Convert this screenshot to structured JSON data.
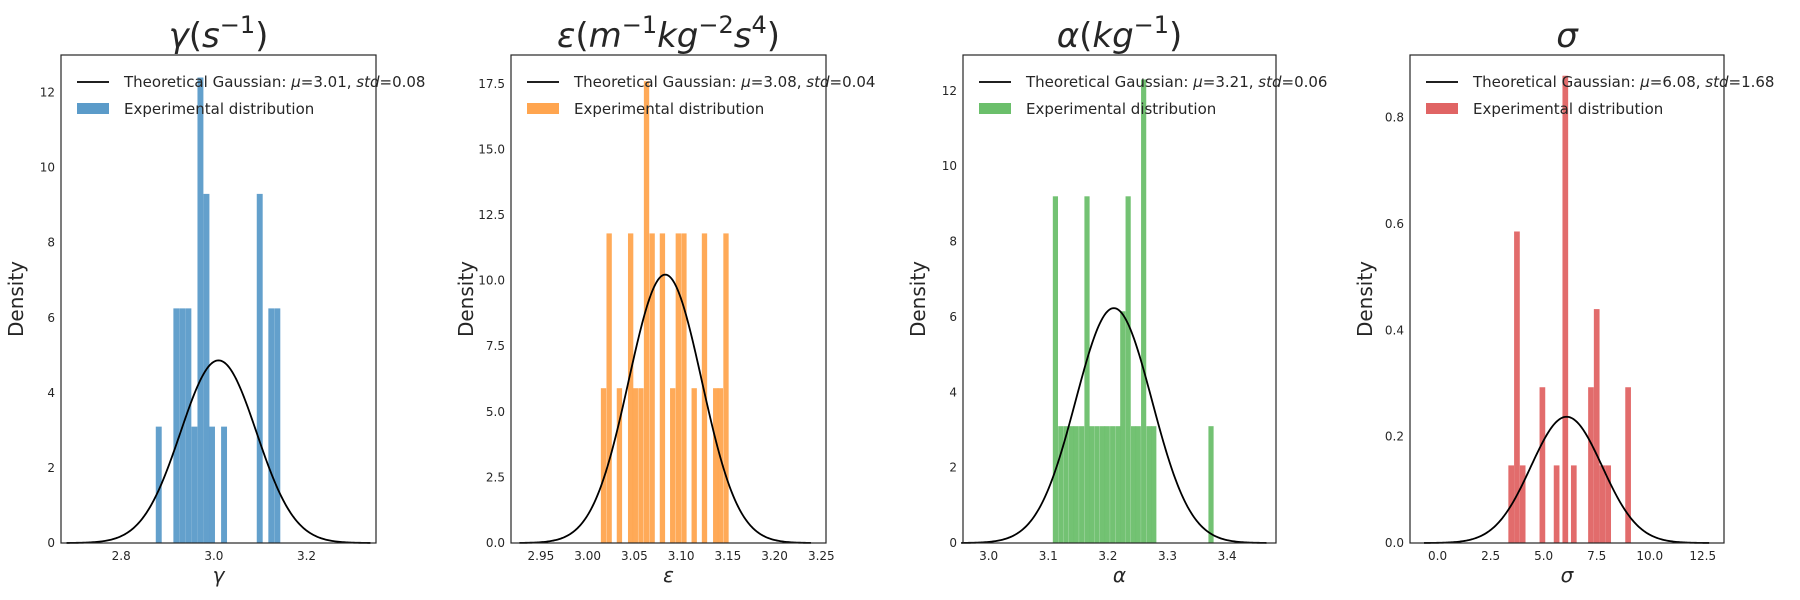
{
  "figure": {
    "density_label": "Density",
    "legend_theory_prefix": "Theoretical Gaussian: ",
    "legend_experimental": "Experimental distribution"
  },
  "chart_data": [
    {
      "type": "bar",
      "title_parts": [
        {
          "t": "γ",
          "it": true
        },
        {
          "t": "(",
          "it": false
        },
        {
          "t": "s",
          "it": true
        },
        {
          "t": "−1",
          "it": false,
          "sup": true
        },
        {
          "t": ")",
          "it": false
        }
      ],
      "title": "γ(s^−1)",
      "xlabel": "γ",
      "ylabel": "Density",
      "color": "#5b9bc9",
      "xlim": [
        2.67,
        3.35
      ],
      "ylim": [
        0,
        13.0
      ],
      "xticks": [
        2.8,
        3.0,
        3.2
      ],
      "xtick_labels": [
        "2.8",
        "3.0",
        "3.2"
      ],
      "yticks": [
        0,
        2,
        4,
        6,
        8,
        10,
        12
      ],
      "ytick_labels": [
        "0",
        "2",
        "4",
        "6",
        "8",
        "10",
        "12"
      ],
      "legend": {
        "mu": "3.01",
        "std": "0.08",
        "theory_label": "Theoretical Gaussian: μ=3.01, std=0.08",
        "hist_label": "Experimental distribution"
      },
      "bin_width": 0.0128,
      "bins": [
        {
          "x": 2.881,
          "h": 3.1
        },
        {
          "x": 2.919,
          "h": 6.25
        },
        {
          "x": 2.932,
          "h": 6.25
        },
        {
          "x": 2.945,
          "h": 6.25
        },
        {
          "x": 2.958,
          "h": 3.1
        },
        {
          "x": 2.971,
          "h": 12.4
        },
        {
          "x": 2.984,
          "h": 9.3
        },
        {
          "x": 2.996,
          "h": 3.1
        },
        {
          "x": 3.022,
          "h": 3.1
        },
        {
          "x": 3.099,
          "h": 9.3
        },
        {
          "x": 3.124,
          "h": 6.25
        },
        {
          "x": 3.137,
          "h": 6.25
        }
      ],
      "gaussian": {
        "mu": 3.01,
        "sigma": 0.082
      }
    },
    {
      "type": "bar",
      "title_parts": [
        {
          "t": "ε",
          "it": true
        },
        {
          "t": "(",
          "it": false
        },
        {
          "t": "m",
          "it": true
        },
        {
          "t": "−1",
          "it": false,
          "sup": true
        },
        {
          "t": "kg",
          "it": true
        },
        {
          "t": "−2",
          "it": false,
          "sup": true
        },
        {
          "t": "s",
          "it": true
        },
        {
          "t": "4",
          "it": false,
          "sup": true
        },
        {
          "t": ")",
          "it": false
        }
      ],
      "title": "ε(m^−1kg^−2s^4)",
      "xlabel": "ε",
      "ylabel": "Density",
      "color": "#ffa54f",
      "xlim": [
        2.918,
        3.255
      ],
      "ylim": [
        0,
        18.6
      ],
      "xticks": [
        2.95,
        3.0,
        3.05,
        3.1,
        3.15,
        3.2,
        3.25
      ],
      "xtick_labels": [
        "2.95",
        "3.00",
        "3.05",
        "3.10",
        "3.15",
        "3.20",
        "3.25"
      ],
      "yticks": [
        0,
        2.5,
        5,
        7.5,
        10,
        12.5,
        15,
        17.5
      ],
      "ytick_labels": [
        "0.0",
        "2.5",
        "5.0",
        "7.5",
        "10.0",
        "12.5",
        "15.0",
        "17.5"
      ],
      "legend": {
        "mu": "3.08",
        "std": "0.04",
        "theory_label": "Theoretical Gaussian: μ=3.08, std=0.04",
        "hist_label": "Experimental distribution"
      },
      "bin_width": 0.0057,
      "bins": [
        {
          "x": 3.017,
          "h": 5.9
        },
        {
          "x": 3.023,
          "h": 11.8
        },
        {
          "x": 3.034,
          "h": 5.9
        },
        {
          "x": 3.046,
          "h": 11.8
        },
        {
          "x": 3.051,
          "h": 5.9
        },
        {
          "x": 3.057,
          "h": 5.9
        },
        {
          "x": 3.063,
          "h": 17.6
        },
        {
          "x": 3.069,
          "h": 11.8
        },
        {
          "x": 3.08,
          "h": 11.8
        },
        {
          "x": 3.091,
          "h": 5.9
        },
        {
          "x": 3.097,
          "h": 11.8
        },
        {
          "x": 3.103,
          "h": 11.8
        },
        {
          "x": 3.114,
          "h": 5.9
        },
        {
          "x": 3.125,
          "h": 11.8
        },
        {
          "x": 3.137,
          "h": 5.9
        },
        {
          "x": 3.142,
          "h": 5.9
        },
        {
          "x": 3.148,
          "h": 11.8
        }
      ],
      "gaussian": {
        "mu": 3.083,
        "sigma": 0.039
      }
    },
    {
      "type": "bar",
      "title_parts": [
        {
          "t": "α",
          "it": true
        },
        {
          "t": "(",
          "it": false
        },
        {
          "t": "kg",
          "it": true
        },
        {
          "t": "−1",
          "it": false,
          "sup": true
        },
        {
          "t": ")",
          "it": false
        }
      ],
      "title": "α(kg^−1)",
      "xlabel": "α",
      "ylabel": "Density",
      "color": "#6bbf6b",
      "xlim": [
        2.957,
        3.482
      ],
      "ylim": [
        0,
        12.95
      ],
      "xticks": [
        3.0,
        3.1,
        3.2,
        3.3,
        3.4
      ],
      "xtick_labels": [
        "3.0",
        "3.1",
        "3.2",
        "3.3",
        "3.4"
      ],
      "yticks": [
        0,
        2,
        4,
        6,
        8,
        10,
        12
      ],
      "ytick_labels": [
        "0",
        "2",
        "4",
        "6",
        "8",
        "10",
        "12"
      ],
      "legend": {
        "mu": "3.21",
        "std": "0.06",
        "theory_label": "Theoretical Gaussian: μ=3.21, std=0.06",
        "hist_label": "Experimental distribution"
      },
      "bin_width": 0.0087,
      "bins": [
        {
          "x": 3.112,
          "h": 9.2
        },
        {
          "x": 3.121,
          "h": 3.1
        },
        {
          "x": 3.13,
          "h": 3.1
        },
        {
          "x": 3.139,
          "h": 3.1
        },
        {
          "x": 3.147,
          "h": 3.1
        },
        {
          "x": 3.156,
          "h": 3.1
        },
        {
          "x": 3.165,
          "h": 9.2
        },
        {
          "x": 3.173,
          "h": 3.1
        },
        {
          "x": 3.182,
          "h": 3.1
        },
        {
          "x": 3.191,
          "h": 3.1
        },
        {
          "x": 3.199,
          "h": 3.1
        },
        {
          "x": 3.208,
          "h": 3.1
        },
        {
          "x": 3.217,
          "h": 3.1
        },
        {
          "x": 3.225,
          "h": 6.15
        },
        {
          "x": 3.234,
          "h": 9.2
        },
        {
          "x": 3.243,
          "h": 3.1
        },
        {
          "x": 3.251,
          "h": 3.1
        },
        {
          "x": 3.26,
          "h": 12.3
        },
        {
          "x": 3.269,
          "h": 3.1
        },
        {
          "x": 3.277,
          "h": 3.1
        },
        {
          "x": 3.373,
          "h": 3.1
        }
      ],
      "gaussian": {
        "mu": 3.21,
        "sigma": 0.064
      }
    },
    {
      "type": "bar",
      "title_parts": [
        {
          "t": "σ",
          "it": true
        }
      ],
      "title": "σ",
      "xlabel": "σ",
      "ylabel": "Density",
      "color": "#e06464",
      "xlim": [
        -1.3,
        13.5
      ],
      "ylim": [
        0,
        0.918
      ],
      "xticks": [
        0,
        2.5,
        5,
        7.5,
        10,
        12.5
      ],
      "xtick_labels": [
        "0.0",
        "2.5",
        "5.0",
        "7.5",
        "10.0",
        "12.5"
      ],
      "yticks": [
        0,
        0.2,
        0.4,
        0.6,
        0.8
      ],
      "ytick_labels": [
        "0.0",
        "0.2",
        "0.4",
        "0.6",
        "0.8"
      ],
      "legend": {
        "mu": "6.08",
        "std": "1.68",
        "theory_label": "Theoretical Gaussian: μ=6.08, std=1.68",
        "hist_label": "Experimental distribution"
      },
      "bin_width": 0.268,
      "bins": [
        {
          "x": 3.47,
          "h": 0.146
        },
        {
          "x": 3.74,
          "h": 0.586
        },
        {
          "x": 4.01,
          "h": 0.146
        },
        {
          "x": 4.94,
          "h": 0.293
        },
        {
          "x": 5.61,
          "h": 0.146
        },
        {
          "x": 6.02,
          "h": 0.879
        },
        {
          "x": 6.42,
          "h": 0.146
        },
        {
          "x": 7.23,
          "h": 0.293
        },
        {
          "x": 7.5,
          "h": 0.44
        },
        {
          "x": 7.77,
          "h": 0.146
        },
        {
          "x": 8.04,
          "h": 0.146
        },
        {
          "x": 8.98,
          "h": 0.293
        }
      ],
      "gaussian": {
        "mu": 6.08,
        "sigma": 1.68
      }
    }
  ]
}
